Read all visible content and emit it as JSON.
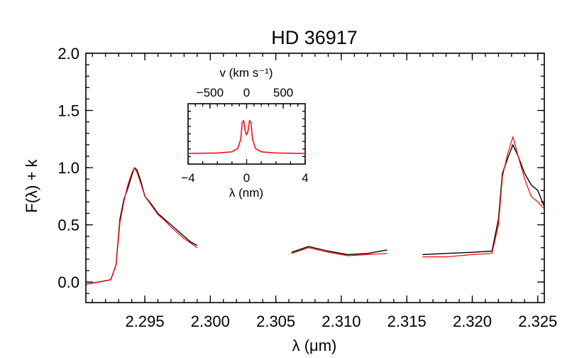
{
  "chart_data": {
    "type": "line",
    "title": "HD 36917",
    "xlabel": "λ (μm)",
    "ylabel": "F(λ) + k",
    "xlim": [
      2.2905,
      2.3255
    ],
    "ylim": [
      -0.18,
      2.0
    ],
    "xticks": [
      "2.295",
      "2.300",
      "2.305",
      "2.310",
      "2.315",
      "2.320",
      "2.325"
    ],
    "xtick_values": [
      2.295,
      2.3,
      2.305,
      2.31,
      2.315,
      2.32,
      2.325
    ],
    "yticks": [
      "0.0",
      "0.5",
      "1.0",
      "1.5",
      "2.0"
    ],
    "ytick_values": [
      0.0,
      0.5,
      1.0,
      1.5,
      2.0
    ],
    "colors": {
      "observed": "#000000",
      "model": "#ff0000"
    },
    "series": [
      {
        "name": "observed",
        "color": "#000000",
        "segments": [
          {
            "x": [
              2.2905,
              2.2915,
              2.2924,
              2.2928,
              2.2931,
              2.2934,
              2.2937,
              2.294,
              2.2942,
              2.2944,
              2.2947,
              2.295,
              2.2955,
              2.296,
              2.2965,
              2.297,
              2.2975,
              2.298,
              2.2985,
              2.299
            ],
            "y": [
              -0.02,
              0.0,
              0.02,
              0.15,
              0.55,
              0.72,
              0.82,
              0.93,
              1.0,
              0.98,
              0.88,
              0.75,
              0.68,
              0.6,
              0.55,
              0.5,
              0.45,
              0.4,
              0.35,
              0.32
            ]
          },
          {
            "x": [
              2.3062,
              2.3075,
              2.309,
              2.3105,
              2.312,
              2.3135
            ],
            "y": [
              0.26,
              0.31,
              0.27,
              0.24,
              0.25,
              0.28
            ]
          },
          {
            "x": [
              2.3162,
              2.318,
              2.32,
              2.3215,
              2.322,
              2.3223,
              2.3227,
              2.3231,
              2.3235,
              2.324,
              2.3245,
              2.325,
              2.3255
            ],
            "y": [
              0.24,
              0.25,
              0.26,
              0.27,
              0.55,
              0.95,
              1.08,
              1.2,
              1.1,
              0.95,
              0.85,
              0.8,
              0.66
            ]
          }
        ]
      },
      {
        "name": "model",
        "color": "#ff0000",
        "segments": [
          {
            "x": [
              2.2905,
              2.2915,
              2.2924,
              2.2928,
              2.2931,
              2.2934,
              2.2937,
              2.294,
              2.2942,
              2.2944,
              2.2947,
              2.295,
              2.2955,
              2.296,
              2.2965,
              2.297,
              2.2975,
              2.298,
              2.2985,
              2.299
            ],
            "y": [
              -0.02,
              0.0,
              0.02,
              0.15,
              0.52,
              0.7,
              0.85,
              0.95,
              1.0,
              0.96,
              0.86,
              0.75,
              0.67,
              0.59,
              0.54,
              0.48,
              0.43,
              0.38,
              0.34,
              0.3
            ]
          },
          {
            "x": [
              2.3062,
              2.3075,
              2.309,
              2.3105,
              2.312,
              2.3135
            ],
            "y": [
              0.25,
              0.3,
              0.26,
              0.23,
              0.24,
              0.25
            ]
          },
          {
            "x": [
              2.3162,
              2.318,
              2.32,
              2.3215,
              2.322,
              2.3223,
              2.3227,
              2.3231,
              2.3235,
              2.324,
              2.3245,
              2.325,
              2.3255
            ],
            "y": [
              0.22,
              0.22,
              0.24,
              0.25,
              0.5,
              0.92,
              1.12,
              1.27,
              1.1,
              0.9,
              0.75,
              0.7,
              0.64
            ]
          }
        ]
      }
    ],
    "inset": {
      "type": "line",
      "xlabel": "λ (nm)",
      "toplabel": "v (km s⁻¹)",
      "xlim": [
        -4,
        4
      ],
      "xticks": [
        "−4",
        "0",
        "4"
      ],
      "xtick_values": [
        -4,
        0,
        4
      ],
      "topticks": [
        "−500",
        "0",
        "500"
      ],
      "toptick_values": [
        -500,
        0,
        500
      ],
      "series": [
        {
          "name": "line profile",
          "color": "#ff0000",
          "x": [
            -4,
            -2,
            -1,
            -0.6,
            -0.4,
            -0.3,
            -0.2,
            -0.1,
            0,
            0.1,
            0.2,
            0.3,
            0.4,
            0.6,
            1,
            2,
            4
          ],
          "y": [
            0.0,
            0.01,
            0.04,
            0.12,
            0.35,
            0.75,
            0.8,
            0.55,
            0.45,
            0.55,
            0.8,
            0.75,
            0.35,
            0.12,
            0.04,
            0.01,
            0.0
          ]
        }
      ]
    }
  }
}
